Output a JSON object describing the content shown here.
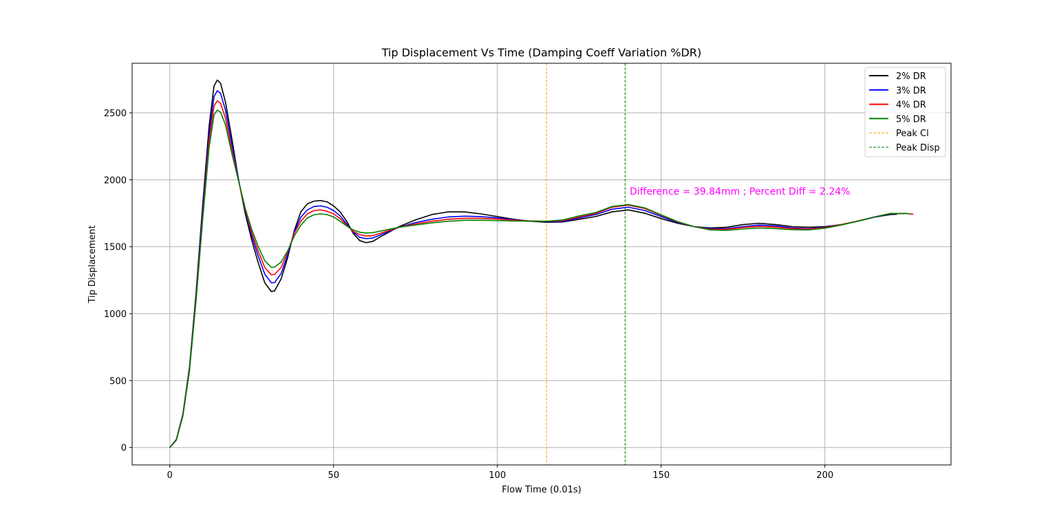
{
  "chart_data": {
    "type": "line",
    "title": "Tip Displacement Vs Time (Damping Coeff Variation %DR)",
    "xlabel": "Flow Time (0.01s)",
    "ylabel": "Tip Displacement",
    "xlim": [
      -11.5,
      238.5
    ],
    "ylim": [
      -130,
      2870
    ],
    "xticks": [
      0,
      50,
      100,
      150,
      200
    ],
    "yticks": [
      0,
      500,
      1000,
      1500,
      2000,
      2500
    ],
    "grid": true,
    "legend_position": "top-right",
    "series": [
      {
        "name": "2% DR",
        "color": "#000000",
        "points": [
          [
            0,
            0
          ],
          [
            2,
            60
          ],
          [
            4,
            250
          ],
          [
            6,
            600
          ],
          [
            8,
            1150
          ],
          [
            10,
            1800
          ],
          [
            12,
            2400
          ],
          [
            13.5,
            2700
          ],
          [
            14.5,
            2745
          ],
          [
            15.5,
            2720
          ],
          [
            17,
            2580
          ],
          [
            19,
            2300
          ],
          [
            21,
            2000
          ],
          [
            23,
            1750
          ],
          [
            25,
            1550
          ],
          [
            27,
            1380
          ],
          [
            29,
            1230
          ],
          [
            31,
            1165
          ],
          [
            32,
            1170
          ],
          [
            34,
            1260
          ],
          [
            36,
            1420
          ],
          [
            38,
            1620
          ],
          [
            40,
            1760
          ],
          [
            42,
            1820
          ],
          [
            44,
            1840
          ],
          [
            46,
            1845
          ],
          [
            48,
            1835
          ],
          [
            50,
            1805
          ],
          [
            52,
            1760
          ],
          [
            54,
            1690
          ],
          [
            56,
            1600
          ],
          [
            58,
            1545
          ],
          [
            60,
            1530
          ],
          [
            62,
            1540
          ],
          [
            64,
            1570
          ],
          [
            67,
            1610
          ],
          [
            70,
            1650
          ],
          [
            75,
            1700
          ],
          [
            80,
            1740
          ],
          [
            85,
            1760
          ],
          [
            90,
            1760
          ],
          [
            95,
            1745
          ],
          [
            100,
            1725
          ],
          [
            105,
            1705
          ],
          [
            110,
            1690
          ],
          [
            115,
            1682
          ],
          [
            120,
            1685
          ],
          [
            125,
            1705
          ],
          [
            130,
            1725
          ],
          [
            135,
            1760
          ],
          [
            140,
            1775
          ],
          [
            145,
            1750
          ],
          [
            150,
            1710
          ],
          [
            155,
            1675
          ],
          [
            160,
            1650
          ],
          [
            165,
            1640
          ],
          [
            170,
            1645
          ],
          [
            175,
            1665
          ],
          [
            180,
            1675
          ],
          [
            185,
            1665
          ],
          [
            190,
            1650
          ],
          [
            195,
            1645
          ],
          [
            200,
            1650
          ],
          [
            205,
            1665
          ],
          [
            210,
            1690
          ],
          [
            215,
            1720
          ],
          [
            220,
            1740
          ],
          [
            222,
            1742
          ]
        ]
      },
      {
        "name": "3% DR",
        "color": "#0000ff",
        "points": [
          [
            0,
            0
          ],
          [
            2,
            58
          ],
          [
            4,
            245
          ],
          [
            6,
            590
          ],
          [
            8,
            1130
          ],
          [
            10,
            1760
          ],
          [
            12,
            2340
          ],
          [
            13.5,
            2620
          ],
          [
            14.5,
            2665
          ],
          [
            15.5,
            2645
          ],
          [
            17,
            2520
          ],
          [
            19,
            2260
          ],
          [
            21,
            2000
          ],
          [
            23,
            1770
          ],
          [
            25,
            1580
          ],
          [
            27,
            1430
          ],
          [
            29,
            1295
          ],
          [
            31,
            1230
          ],
          [
            32,
            1232
          ],
          [
            34,
            1300
          ],
          [
            36,
            1440
          ],
          [
            38,
            1610
          ],
          [
            40,
            1720
          ],
          [
            42,
            1775
          ],
          [
            44,
            1800
          ],
          [
            46,
            1805
          ],
          [
            48,
            1795
          ],
          [
            50,
            1770
          ],
          [
            52,
            1730
          ],
          [
            54,
            1670
          ],
          [
            56,
            1610
          ],
          [
            58,
            1570
          ],
          [
            60,
            1560
          ],
          [
            62,
            1565
          ],
          [
            64,
            1585
          ],
          [
            67,
            1615
          ],
          [
            70,
            1645
          ],
          [
            75,
            1680
          ],
          [
            80,
            1705
          ],
          [
            85,
            1722
          ],
          [
            90,
            1728
          ],
          [
            95,
            1725
          ],
          [
            100,
            1715
          ],
          [
            105,
            1702
          ],
          [
            110,
            1692
          ],
          [
            115,
            1688
          ],
          [
            120,
            1690
          ],
          [
            125,
            1715
          ],
          [
            130,
            1740
          ],
          [
            135,
            1780
          ],
          [
            140,
            1795
          ],
          [
            145,
            1770
          ],
          [
            150,
            1725
          ],
          [
            155,
            1680
          ],
          [
            160,
            1650
          ],
          [
            165,
            1635
          ],
          [
            170,
            1635
          ],
          [
            175,
            1650
          ],
          [
            180,
            1662
          ],
          [
            185,
            1655
          ],
          [
            190,
            1640
          ],
          [
            195,
            1635
          ],
          [
            200,
            1645
          ],
          [
            205,
            1665
          ],
          [
            210,
            1690
          ],
          [
            215,
            1720
          ],
          [
            220,
            1745
          ],
          [
            225,
            1748
          ]
        ]
      },
      {
        "name": "4% DR",
        "color": "#ff0000",
        "points": [
          [
            0,
            0
          ],
          [
            2,
            56
          ],
          [
            4,
            240
          ],
          [
            6,
            580
          ],
          [
            8,
            1110
          ],
          [
            10,
            1720
          ],
          [
            12,
            2290
          ],
          [
            13.5,
            2550
          ],
          [
            14.5,
            2590
          ],
          [
            15.5,
            2570
          ],
          [
            17,
            2460
          ],
          [
            19,
            2220
          ],
          [
            21,
            1990
          ],
          [
            23,
            1780
          ],
          [
            25,
            1605
          ],
          [
            27,
            1465
          ],
          [
            29,
            1345
          ],
          [
            31,
            1290
          ],
          [
            32,
            1293
          ],
          [
            34,
            1345
          ],
          [
            36,
            1460
          ],
          [
            38,
            1600
          ],
          [
            40,
            1690
          ],
          [
            42,
            1745
          ],
          [
            44,
            1770
          ],
          [
            46,
            1775
          ],
          [
            48,
            1765
          ],
          [
            50,
            1745
          ],
          [
            52,
            1710
          ],
          [
            54,
            1660
          ],
          [
            56,
            1615
          ],
          [
            58,
            1590
          ],
          [
            60,
            1580
          ],
          [
            62,
            1583
          ],
          [
            64,
            1598
          ],
          [
            67,
            1622
          ],
          [
            70,
            1645
          ],
          [
            75,
            1670
          ],
          [
            80,
            1690
          ],
          [
            85,
            1705
          ],
          [
            90,
            1712
          ],
          [
            95,
            1712
          ],
          [
            100,
            1707
          ],
          [
            105,
            1698
          ],
          [
            110,
            1692
          ],
          [
            115,
            1690
          ],
          [
            120,
            1695
          ],
          [
            125,
            1722
          ],
          [
            130,
            1748
          ],
          [
            135,
            1795
          ],
          [
            140,
            1810
          ],
          [
            145,
            1785
          ],
          [
            150,
            1735
          ],
          [
            155,
            1685
          ],
          [
            160,
            1650
          ],
          [
            165,
            1630
          ],
          [
            170,
            1630
          ],
          [
            175,
            1643
          ],
          [
            180,
            1652
          ],
          [
            185,
            1646
          ],
          [
            190,
            1635
          ],
          [
            195,
            1632
          ],
          [
            200,
            1642
          ],
          [
            205,
            1665
          ],
          [
            210,
            1692
          ],
          [
            215,
            1722
          ],
          [
            220,
            1748
          ],
          [
            225,
            1748
          ],
          [
            227,
            1742
          ]
        ]
      },
      {
        "name": "5% DR",
        "color": "#008000",
        "points": [
          [
            0,
            0
          ],
          [
            2,
            54
          ],
          [
            4,
            235
          ],
          [
            6,
            570
          ],
          [
            8,
            1090
          ],
          [
            10,
            1690
          ],
          [
            12,
            2240
          ],
          [
            13.5,
            2485
          ],
          [
            14.5,
            2520
          ],
          [
            15.5,
            2505
          ],
          [
            17,
            2410
          ],
          [
            19,
            2190
          ],
          [
            21,
            1990
          ],
          [
            23,
            1790
          ],
          [
            25,
            1630
          ],
          [
            27,
            1500
          ],
          [
            29,
            1395
          ],
          [
            31,
            1345
          ],
          [
            32,
            1348
          ],
          [
            34,
            1385
          ],
          [
            36,
            1470
          ],
          [
            38,
            1580
          ],
          [
            40,
            1660
          ],
          [
            42,
            1715
          ],
          [
            44,
            1738
          ],
          [
            46,
            1745
          ],
          [
            48,
            1740
          ],
          [
            50,
            1722
          ],
          [
            52,
            1690
          ],
          [
            54,
            1655
          ],
          [
            56,
            1625
          ],
          [
            58,
            1608
          ],
          [
            60,
            1602
          ],
          [
            62,
            1605
          ],
          [
            64,
            1615
          ],
          [
            67,
            1630
          ],
          [
            70,
            1645
          ],
          [
            75,
            1662
          ],
          [
            80,
            1678
          ],
          [
            85,
            1690
          ],
          [
            90,
            1697
          ],
          [
            95,
            1698
          ],
          [
            100,
            1695
          ],
          [
            105,
            1692
          ],
          [
            110,
            1690
          ],
          [
            115,
            1690
          ],
          [
            120,
            1700
          ],
          [
            125,
            1730
          ],
          [
            130,
            1755
          ],
          [
            135,
            1800
          ],
          [
            140,
            1815
          ],
          [
            145,
            1790
          ],
          [
            150,
            1738
          ],
          [
            155,
            1688
          ],
          [
            160,
            1650
          ],
          [
            165,
            1625
          ],
          [
            170,
            1622
          ],
          [
            175,
            1632
          ],
          [
            180,
            1640
          ],
          [
            185,
            1635
          ],
          [
            190,
            1627
          ],
          [
            195,
            1625
          ],
          [
            200,
            1638
          ],
          [
            205,
            1662
          ],
          [
            210,
            1690
          ],
          [
            215,
            1722
          ],
          [
            220,
            1748
          ],
          [
            225,
            1748
          ],
          [
            226,
            1745
          ]
        ]
      }
    ],
    "reference_lines": [
      {
        "name": "Peak Cl",
        "x": 115,
        "color": "#ffa500",
        "style": "dashed"
      },
      {
        "name": "Peak Disp",
        "x": 139,
        "color": "#008000",
        "style": "dashed"
      }
    ],
    "annotation": {
      "text": "Difference = 39.84mm ; Percent Diff = 2.24%",
      "x": 140,
      "y": 1890,
      "color": "#ff00ff"
    }
  }
}
